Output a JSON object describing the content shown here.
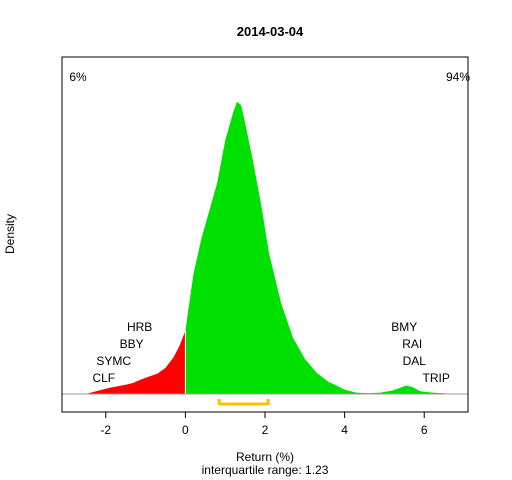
{
  "chart_data": {
    "type": "area",
    "title": "2014-03-04",
    "xlabel": "Return (%)",
    "ylabel": "Density",
    "subtitle": "interquartile range: 1.23",
    "xlim": [
      -3.1,
      7.1
    ],
    "ylim": [
      0,
      0.45
    ],
    "x_ticks": [
      -2,
      0,
      2,
      4,
      6
    ],
    "grid": false,
    "split_at": 0,
    "left_percent_label": "6%",
    "right_percent_label": "94%",
    "colors": {
      "negative": "#ff0000",
      "positive": "#00e000",
      "iqr": "#ffc000",
      "axis": "#999999",
      "left_label": "#ff0000",
      "right_label": "#008000"
    },
    "density": {
      "x": [
        -2.5,
        -2.3,
        -2.1,
        -1.9,
        -1.7,
        -1.5,
        -1.3,
        -1.1,
        -0.9,
        -0.7,
        -0.5,
        -0.3,
        -0.15,
        0.0,
        0.2,
        0.4,
        0.6,
        0.8,
        1.0,
        1.2,
        1.3,
        1.4,
        1.5,
        1.7,
        1.9,
        2.1,
        2.4,
        2.7,
        3.0,
        3.3,
        3.6,
        3.8,
        4.0,
        4.3,
        4.6,
        4.9,
        5.2,
        5.4,
        5.55,
        5.7,
        5.9,
        6.2,
        6.5,
        6.7
      ],
      "y": [
        0.0,
        0.003,
        0.006,
        0.009,
        0.011,
        0.013,
        0.016,
        0.021,
        0.025,
        0.029,
        0.037,
        0.052,
        0.068,
        0.09,
        0.17,
        0.22,
        0.26,
        0.3,
        0.36,
        0.4,
        0.415,
        0.41,
        0.385,
        0.33,
        0.27,
        0.2,
        0.13,
        0.08,
        0.05,
        0.03,
        0.017,
        0.012,
        0.006,
        0.002,
        0.001,
        0.002,
        0.005,
        0.009,
        0.012,
        0.01,
        0.004,
        0.002,
        0.001,
        0.0
      ]
    },
    "iqr": {
      "q1": 0.85,
      "q3": 2.08
    },
    "annotations_left": [
      {
        "label": "HRB",
        "x": -1.15
      },
      {
        "label": "BBY",
        "x": -1.35
      },
      {
        "label": "SYMC",
        "x": -1.8
      },
      {
        "label": "CLF",
        "x": -2.05
      }
    ],
    "annotations_right": [
      {
        "label": "BMY",
        "x": 5.5
      },
      {
        "label": "RAI",
        "x": 5.7
      },
      {
        "label": "DAL",
        "x": 5.75
      },
      {
        "label": "TRIP",
        "x": 6.3
      }
    ]
  }
}
